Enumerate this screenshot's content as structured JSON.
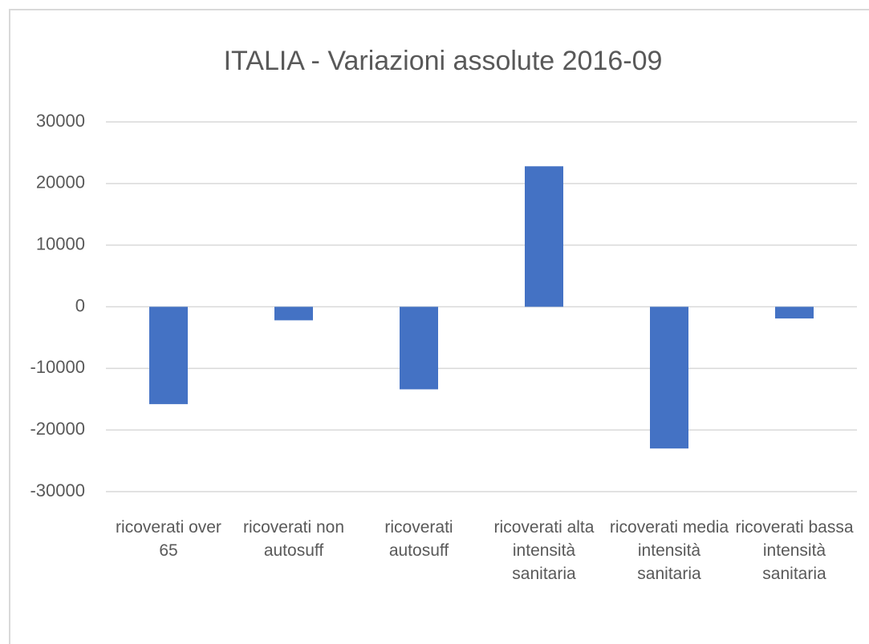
{
  "chart_data": {
    "type": "bar",
    "title": "ITALIA - Variazioni assolute 2016-09",
    "categories": [
      "ricoverati over 65",
      "ricoverati non autosuff",
      "ricoverati autosuff",
      "ricoverati alta intensità sanitaria",
      "ricoverati media intensità sanitaria",
      "ricoverati bassa intensità sanitaria"
    ],
    "values": [
      -15800,
      -2200,
      -13400,
      22800,
      -23000,
      -1900
    ],
    "color": "#4472c4",
    "ylim": [
      -30000,
      30000
    ],
    "yticks": [
      -30000,
      -20000,
      -10000,
      0,
      10000,
      20000,
      30000
    ],
    "grid": true
  }
}
